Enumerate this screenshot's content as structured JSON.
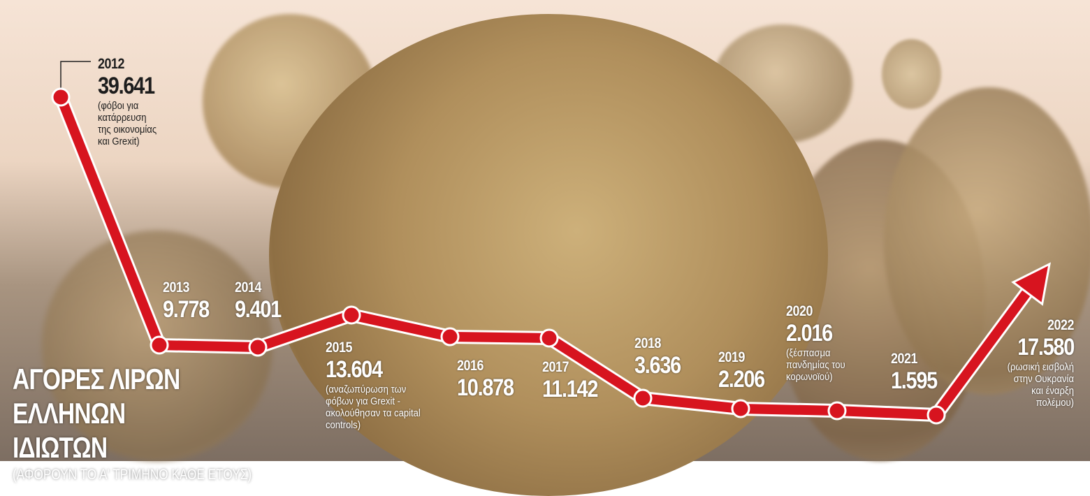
{
  "chart_data": {
    "type": "line",
    "title": "ΑΓΟΡΕΣ ΛΙΡΩΝ ΕΛΛΗΝΩΝ ΙΔΙΩΤΩΝ",
    "subtitle": "(ΑΦΟΡΟΥΝ ΤΟ Α' ΤΡΙΜΗΝΟ ΚΑΘΕ ΕΤΟΥΣ)",
    "categories": [
      "2012",
      "2013",
      "2014",
      "2015",
      "2016",
      "2017",
      "2018",
      "2019",
      "2020",
      "2021",
      "2022"
    ],
    "value_labels": [
      "39.641",
      "9.778",
      "9.401",
      "13.604",
      "10.878",
      "11.142",
      "3.636",
      "2.206",
      "2.016",
      "1.595",
      "17.580"
    ],
    "values": [
      39641,
      9778,
      9401,
      13604,
      10878,
      11142,
      3636,
      2206,
      2016,
      1595,
      17580
    ],
    "annotations": {
      "2012": "(φόβοι για\nκατάρρευση\nτης οικονομίας\nκαι Grexit)",
      "2015": "(αναζωπύρωση των\nφόβων για Grexit -\nακολούθησαν τα capital\ncontrols)",
      "2020": "(ξέσπασμα\nπανδημίας του\nκορωνοϊού)",
      "2022": "(ρωσική εισβολή\nστην Ουκρανία\nκαι έναρξη\nπολέμου)"
    },
    "line_color": "#d7141f",
    "final_point_style": "arrow"
  }
}
